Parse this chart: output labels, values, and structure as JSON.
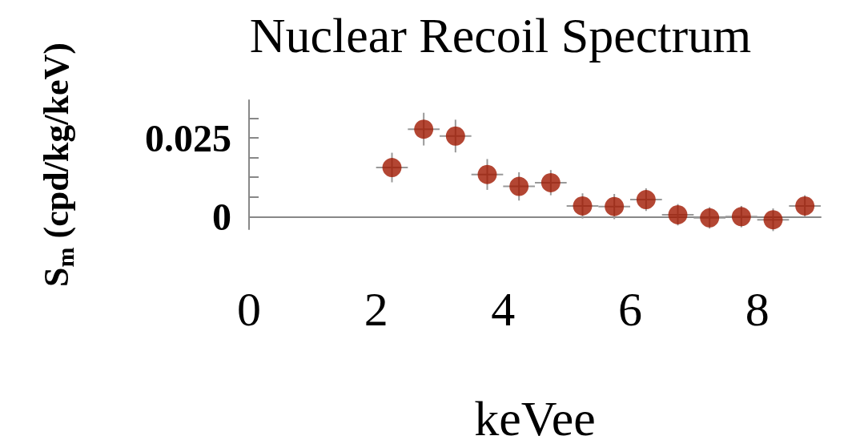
{
  "chart_data": {
    "type": "scatter",
    "title": "Nuclear Recoil Spectrum",
    "xlabel": "keVee",
    "ylabel": "S$_{m}$ (cpd/kg/keV)",
    "x": [
      2.25,
      2.75,
      3.25,
      3.75,
      4.25,
      4.75,
      5.25,
      5.75,
      6.25,
      6.75,
      7.25,
      7.75,
      8.25,
      8.75
    ],
    "values": [
      0.0156,
      0.0278,
      0.0256,
      0.0134,
      0.0096,
      0.0108,
      0.0034,
      0.0032,
      0.0054,
      0.0006,
      -0.0004,
      0.0,
      -0.001,
      0.0034
    ],
    "errors": [
      0.0047,
      0.0052,
      0.0052,
      0.0049,
      0.0045,
      0.004,
      0.004,
      0.004,
      0.0036,
      0.0034,
      0.0034,
      0.0034,
      0.0036,
      0.0034
    ],
    "xerrors": [
      0.25,
      0.25,
      0.25,
      0.25,
      0.25,
      0.25,
      0.25,
      0.25,
      0.25,
      0.25,
      0.25,
      0.25,
      0.25,
      0.25
    ],
    "color": "#a01800",
    "marker": "circle",
    "xlim": [
      0,
      9
    ],
    "xticks": [
      0,
      2,
      4,
      6,
      8
    ],
    "ylim": [
      -0.004,
      0.037
    ],
    "yticks": [
      0,
      {
        "value": 0.00625,
        "label": null
      },
      {
        "value": 0.0125,
        "label": null
      },
      {
        "value": 0.01875,
        "label": null
      },
      0.025,
      {
        "value": 0.03125,
        "label": null
      }
    ],
    "grid": false
  }
}
